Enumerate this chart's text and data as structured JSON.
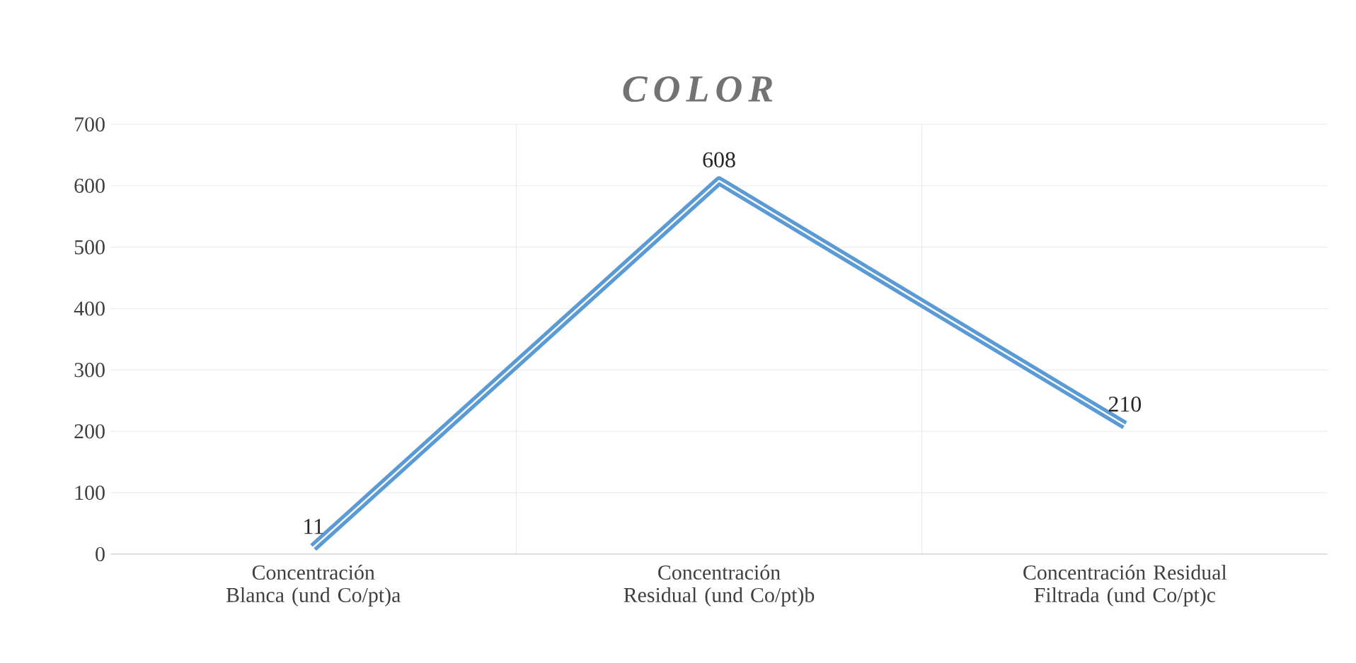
{
  "chart_data": {
    "type": "line",
    "title": "COLOR",
    "categories": [
      "Concentración Blanca (und Co/pt)a",
      "Concentración Residual (und Co/pt)b",
      "Concentración Residual Filtrada (und Co/pt)c"
    ],
    "values": [
      11,
      608,
      210
    ],
    "color": "#5b9bd5",
    "ylim": [
      0,
      700
    ],
    "yticks": [
      0,
      100,
      200,
      300,
      400,
      500,
      600,
      700
    ],
    "grid": true,
    "data_labels": true,
    "marker": "none",
    "line_style": "solid"
  }
}
